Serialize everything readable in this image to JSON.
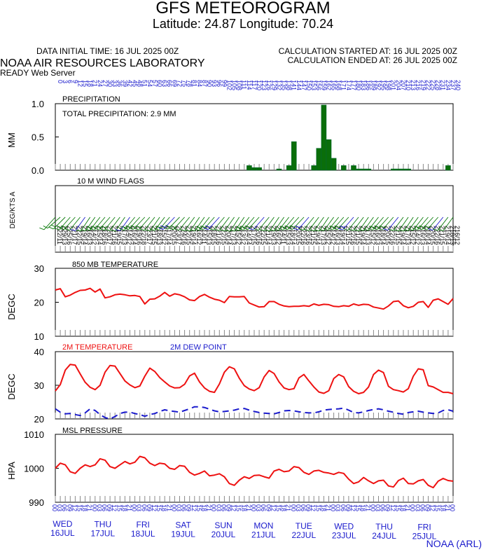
{
  "header": {
    "title": "GFS METEOROGRAM",
    "subtitle": "Latitude: 24.87 Longitude:  70.24",
    "data_initial_time": "DATA INITIAL TIME: 16 JUL 2025 00Z",
    "calc_started": "CALCULATION STARTED AT: 16 JUL 2025 00Z",
    "calc_ended": "CALCULATION ENDED AT: 26 JUL 2025 00Z",
    "lab_name": "NOAA AIR RESOURCES LABORATORY",
    "server_name": "READY Web Server"
  },
  "footer": {
    "credit": "NOAA (ARL)"
  },
  "colors": {
    "precip": "#0a6e0a",
    "wind": "#0a7a0a",
    "wind_alt": "#1a1acc",
    "temp": "#ee1111",
    "dewpoint": "#1a1acc",
    "axis_text_blue": "#1a1acc"
  },
  "chart_data": [
    {
      "type": "bar",
      "panel_label": "PRECIPITATION",
      "annotation": "TOTAL PRECIPITATION:   2.9 MM",
      "ylabel": "MM",
      "ylim": [
        0,
        1.0
      ],
      "yticks": [
        "0.0",
        "0.5",
        "1.0"
      ],
      "x_hours": [
        0,
        3,
        6,
        9,
        12,
        15,
        18,
        21,
        24,
        27,
        30,
        33,
        36,
        39,
        42,
        45,
        48,
        51,
        54,
        57,
        60,
        63,
        66,
        69,
        72,
        75,
        78,
        81,
        84,
        87,
        90,
        93,
        96,
        99,
        102,
        105,
        108,
        111,
        114,
        117,
        120,
        123,
        126,
        129,
        132,
        135,
        138,
        141,
        144,
        147,
        150,
        153,
        156,
        159,
        162,
        165,
        168,
        171,
        174,
        177,
        180,
        183,
        186,
        189,
        192,
        195,
        198,
        201,
        204,
        207,
        210,
        213,
        216,
        219,
        222,
        225,
        228,
        231,
        234,
        237,
        240
      ],
      "values": [
        0,
        0,
        0,
        0,
        0,
        0,
        0,
        0,
        0,
        0,
        0,
        0,
        0,
        0,
        0,
        0,
        0,
        0,
        0,
        0,
        0,
        0,
        0,
        0,
        0,
        0,
        0,
        0,
        0,
        0,
        0,
        0,
        0,
        0,
        0,
        0,
        0,
        0,
        0,
        0.07,
        0.04,
        0.04,
        0,
        0,
        0,
        0.02,
        0,
        0.07,
        0.43,
        0,
        0,
        0,
        0.07,
        0.33,
        0.98,
        0.46,
        0.18,
        0,
        0.07,
        0,
        0.07,
        0.02,
        0.02,
        0.02,
        0,
        0,
        0,
        0,
        0.02,
        0.02,
        0.02,
        0.02,
        0,
        0,
        0,
        0,
        0,
        0,
        0,
        0.07,
        0
      ]
    },
    {
      "type": "wind_barbs",
      "panel_label": "10 M   WIND FLAGS",
      "ylabel": "DEG/KTS  A",
      "x_hours": [
        0,
        3,
        6,
        9,
        12,
        15,
        18,
        21,
        24,
        27,
        30,
        33,
        36,
        39,
        42,
        45,
        48,
        51,
        54,
        57,
        60,
        63,
        66,
        69,
        72,
        75,
        78,
        81,
        84,
        87,
        90,
        93,
        96,
        99,
        102,
        105,
        108,
        111,
        114,
        117,
        120,
        123,
        126,
        129,
        132,
        135,
        138,
        141,
        144,
        147,
        150,
        153,
        156,
        159,
        162,
        165,
        168,
        171,
        174,
        177,
        180,
        183,
        186,
        189,
        192,
        195,
        198,
        201,
        204,
        207,
        210,
        213,
        216,
        219,
        222,
        225,
        228,
        231,
        234,
        237,
        240
      ],
      "direction_labels": [
        "222/11",
        "229/13",
        "225/16",
        "221/17",
        "222/15",
        "219/14",
        "216/13",
        "214/12",
        "215/14",
        "218/16",
        "220/17",
        "221/16",
        "219/15",
        "217/13",
        "214/12",
        "216/14",
        "219/16",
        "222/18",
        "223/17",
        "221/15",
        "218/13",
        "215/12",
        "217/14",
        "220/15",
        "223/17",
        "224/16",
        "222/15",
        "219/14",
        "216/12",
        "214/11",
        "215/13",
        "218/15",
        "221/16",
        "222/15",
        "220/14",
        "217/13",
        "215/12",
        "213/12",
        "214/14",
        "217/15",
        "220/16",
        "222/15",
        "221/14",
        "219/13",
        "216/12",
        "214/11",
        "215/13",
        "218/14",
        "220/15",
        "222/16",
        "223/16",
        "221/15",
        "219/14",
        "217/13",
        "215/12",
        "214/12",
        "216/13",
        "219/14",
        "221/15",
        "222/16",
        "221/15",
        "219/14",
        "217/13",
        "215/12",
        "216/13",
        "218/14",
        "220/15",
        "222/16",
        "221/15",
        "219/14",
        "217/13",
        "215/12",
        "214/12",
        "216/13",
        "218/14",
        "220/15",
        "222/16",
        "221/15",
        "219/14",
        "218/13",
        "216/12"
      ]
    },
    {
      "type": "line",
      "panel_label": "850 MB  TEMPERATURE",
      "ylabel": "DEGC",
      "ylim": [
        10,
        30
      ],
      "yticks": [
        "10",
        "20",
        "30"
      ],
      "x_hours": [
        0,
        3,
        6,
        9,
        12,
        15,
        18,
        21,
        24,
        27,
        30,
        33,
        36,
        39,
        42,
        45,
        48,
        51,
        54,
        57,
        60,
        63,
        66,
        69,
        72,
        75,
        78,
        81,
        84,
        87,
        90,
        93,
        96,
        99,
        102,
        105,
        108,
        111,
        114,
        117,
        120,
        123,
        126,
        129,
        132,
        135,
        138,
        141,
        144,
        147,
        150,
        153,
        156,
        159,
        162,
        165,
        168,
        171,
        174,
        177,
        180,
        183,
        186,
        189,
        192,
        195,
        198,
        201,
        204,
        207,
        210,
        213,
        216,
        219,
        222,
        225,
        228,
        231,
        234,
        237,
        240
      ],
      "series": [
        {
          "values": [
            23.6,
            24.0,
            21.6,
            22.1,
            22.9,
            23.5,
            23.6,
            24.1,
            23.0,
            23.9,
            21.3,
            21.6,
            22.2,
            22.4,
            22.2,
            21.9,
            22.0,
            21.7,
            19.5,
            20.9,
            21.0,
            21.8,
            22.9,
            21.8,
            22.5,
            22.2,
            21.6,
            20.7,
            20.5,
            21.7,
            22.3,
            21.5,
            20.9,
            20.6,
            19.9,
            21.7,
            21.6,
            21.6,
            21.7,
            19.8,
            19.2,
            18.6,
            18.7,
            20.2,
            20.2,
            19.4,
            18.9,
            18.7,
            18.8,
            18.8,
            19.0,
            18.8,
            19.5,
            19.1,
            19.4,
            19.3,
            18.8,
            18.7,
            19.0,
            18.8,
            19.5,
            19.1,
            19.4,
            19.3,
            18.6,
            18.3,
            18.0,
            18.9,
            20.2,
            20.4,
            19.0,
            18.4,
            18.8,
            20.0,
            20.2,
            18.5,
            20.6,
            21.0,
            20.2,
            19.4,
            21.1
          ]
        }
      ]
    },
    {
      "type": "line",
      "ylabel": "DEGC",
      "ylim": [
        20,
        40
      ],
      "yticks": [
        "20",
        "30",
        "40"
      ],
      "x_hours": [
        0,
        3,
        6,
        9,
        12,
        15,
        18,
        21,
        24,
        27,
        30,
        33,
        36,
        39,
        42,
        45,
        48,
        51,
        54,
        57,
        60,
        63,
        66,
        69,
        72,
        75,
        78,
        81,
        84,
        87,
        90,
        93,
        96,
        99,
        102,
        105,
        108,
        111,
        114,
        117,
        120,
        123,
        126,
        129,
        132,
        135,
        138,
        141,
        144,
        147,
        150,
        153,
        156,
        159,
        162,
        165,
        168,
        171,
        174,
        177,
        180,
        183,
        186,
        189,
        192,
        195,
        198,
        201,
        204,
        207,
        210,
        213,
        216,
        219,
        222,
        225,
        228,
        231,
        234,
        237,
        240
      ],
      "series": [
        {
          "name": "2M TEMPERATURE",
          "color": "#ee1111",
          "style": "solid",
          "values": [
            28.3,
            30.2,
            34.5,
            36.2,
            36.0,
            33.4,
            30.9,
            29.4,
            28.7,
            30.0,
            33.9,
            35.9,
            35.7,
            33.5,
            31.3,
            30.1,
            29.3,
            29.8,
            32.7,
            35.1,
            34.1,
            32.3,
            31.0,
            29.8,
            29.2,
            29.3,
            30.3,
            32.8,
            33.6,
            31.0,
            29.2,
            28.2,
            27.9,
            30.4,
            33.9,
            35.5,
            34.9,
            32.1,
            29.9,
            28.9,
            28.4,
            29.3,
            32.5,
            34.4,
            33.5,
            31.0,
            29.2,
            28.7,
            29.0,
            32.2,
            33.2,
            31.3,
            29.5,
            28.0,
            27.6,
            28.4,
            32.0,
            33.2,
            32.5,
            29.6,
            28.2,
            27.5,
            27.9,
            29.5,
            33.2,
            34.5,
            33.8,
            29.7,
            28.7,
            28.4,
            28.0,
            29.0,
            32.7,
            34.9,
            34.6,
            29.9,
            29.5,
            28.7,
            27.9,
            27.9,
            27.5
          ]
        },
        {
          "name": "2M  DEW POINT",
          "color": "#1a1acc",
          "style": "dashed",
          "values": [
            23.0,
            22.0,
            21.5,
            21.6,
            21.3,
            21.0,
            21.8,
            23.0,
            22.5,
            21.3,
            20.4,
            20.0,
            20.7,
            21.6,
            22.0,
            22.0,
            21.6,
            21.3,
            20.8,
            21.3,
            21.6,
            22.2,
            22.7,
            22.4,
            22.2,
            22.0,
            22.5,
            23.0,
            23.6,
            23.6,
            23.4,
            22.9,
            22.4,
            22.1,
            22.2,
            22.4,
            22.6,
            23.0,
            23.1,
            22.6,
            22.2,
            21.9,
            21.7,
            21.6,
            21.5,
            21.9,
            22.4,
            22.5,
            22.4,
            22.1,
            21.9,
            21.8,
            21.8,
            22.1,
            22.6,
            22.8,
            22.9,
            23.0,
            23.2,
            22.6,
            21.9,
            21.8,
            22.1,
            22.5,
            22.8,
            23.0,
            22.7,
            22.3,
            22.0,
            21.6,
            21.4,
            21.9,
            22.1,
            22.3,
            22.0,
            21.8,
            21.6,
            21.8,
            22.5,
            22.7,
            22.3
          ]
        }
      ]
    },
    {
      "type": "line",
      "panel_label": "MSL PRESSURE",
      "ylabel": "HPA",
      "ylim": [
        990,
        1010
      ],
      "yticks": [
        "990",
        "1000",
        "1010"
      ],
      "x_hours": [
        0,
        3,
        6,
        9,
        12,
        15,
        18,
        21,
        24,
        27,
        30,
        33,
        36,
        39,
        42,
        45,
        48,
        51,
        54,
        57,
        60,
        63,
        66,
        69,
        72,
        75,
        78,
        81,
        84,
        87,
        90,
        93,
        96,
        99,
        102,
        105,
        108,
        111,
        114,
        117,
        120,
        123,
        126,
        129,
        132,
        135,
        138,
        141,
        144,
        147,
        150,
        153,
        156,
        159,
        162,
        165,
        168,
        171,
        174,
        177,
        180,
        183,
        186,
        189,
        192,
        195,
        198,
        201,
        204,
        207,
        210,
        213,
        216,
        219,
        222,
        225,
        228,
        231,
        234,
        237,
        240
      ],
      "series": [
        {
          "values": [
            1000.0,
            1001.5,
            1001.0,
            999.0,
            998.5,
            1000.0,
            1001.0,
            1000.5,
            1001.0,
            1002.8,
            1002.4,
            1000.5,
            1000.0,
            1001.0,
            1002.0,
            1001.3,
            1001.8,
            1003.5,
            1003.1,
            1001.5,
            1000.8,
            1001.5,
            1001.3,
            1000.0,
            999.7,
            1000.8,
            1000.6,
            998.8,
            998.0,
            998.5,
            999.2,
            997.8,
            998.0,
            998.4,
            997.5,
            995.5,
            995.0,
            996.5,
            997.5,
            997.0,
            997.9,
            998.0,
            997.5,
            997.1,
            999.2,
            999.7,
            999.0,
            999.2,
            1000.5,
            1000.2,
            998.8,
            998.2,
            999.2,
            999.4,
            998.8,
            998.6,
            998.2,
            998.8,
            998.5,
            996.8,
            995.5,
            996.0,
            997.3,
            996.3,
            995.5,
            996.3,
            996.5,
            994.8,
            994.5,
            996.4,
            997.1,
            995.5,
            995.4,
            996.3,
            996.7,
            995.0,
            994.3,
            996.2,
            997.0,
            996.4,
            996.2
          ]
        }
      ]
    }
  ],
  "x_axis": {
    "hour_labels": [
      "00",
      "03",
      "06",
      "09",
      "12",
      "15",
      "18",
      "21",
      "00",
      "03",
      "06",
      "09",
      "12",
      "15",
      "18",
      "21",
      "00",
      "03",
      "06",
      "09",
      "12",
      "15",
      "18",
      "21",
      "00",
      "03",
      "06",
      "09",
      "12",
      "15",
      "18",
      "21",
      "00",
      "03",
      "06",
      "09",
      "12",
      "15",
      "18",
      "21",
      "00",
      "03",
      "06",
      "09",
      "12",
      "15",
      "18",
      "21",
      "00",
      "03",
      "06",
      "09",
      "12",
      "15",
      "18",
      "21",
      "00",
      "03",
      "06",
      "09",
      "12",
      "15",
      "18",
      "21",
      "00",
      "03",
      "06",
      "09",
      "12",
      "15",
      "18",
      "21",
      "00",
      "03",
      "06",
      "09",
      "12",
      "15",
      "18",
      "21",
      "00"
    ],
    "top_forecast_hours": [
      "0",
      "3",
      "6",
      "9",
      "12",
      "15",
      "18",
      "21",
      "24",
      "27",
      "30",
      "33",
      "36",
      "39",
      "42",
      "45",
      "48",
      "51",
      "54",
      "57",
      "60",
      "63",
      "66",
      "69",
      "72",
      "75",
      "78",
      "81",
      "84",
      "87",
      "90",
      "93",
      "96",
      "99",
      "102",
      "105",
      "108",
      "111",
      "114",
      "117",
      "120",
      "123",
      "126",
      "129",
      "132",
      "135",
      "138",
      "141",
      "144",
      "147",
      "150",
      "153",
      "156",
      "159",
      "162",
      "165",
      "168",
      "171",
      "174",
      "177",
      "180",
      "183",
      "186",
      "189",
      "192",
      "195",
      "198",
      "201",
      "204",
      "207",
      "210",
      "213",
      "216",
      "219",
      "222",
      "225",
      "228",
      "231",
      "234",
      "237",
      "240"
    ],
    "days": [
      {
        "dow": "WED",
        "date": "16JUL"
      },
      {
        "dow": "THU",
        "date": "17JUL"
      },
      {
        "dow": "FRI",
        "date": "18JUL"
      },
      {
        "dow": "SAT",
        "date": "19JUL"
      },
      {
        "dow": "SUN",
        "date": "20JUL"
      },
      {
        "dow": "MON",
        "date": "21JUL"
      },
      {
        "dow": "TUE",
        "date": "22JUL"
      },
      {
        "dow": "WED",
        "date": "23JUL"
      },
      {
        "dow": "THU",
        "date": "24JUL"
      },
      {
        "dow": "FRI",
        "date": "25JUL"
      }
    ]
  }
}
